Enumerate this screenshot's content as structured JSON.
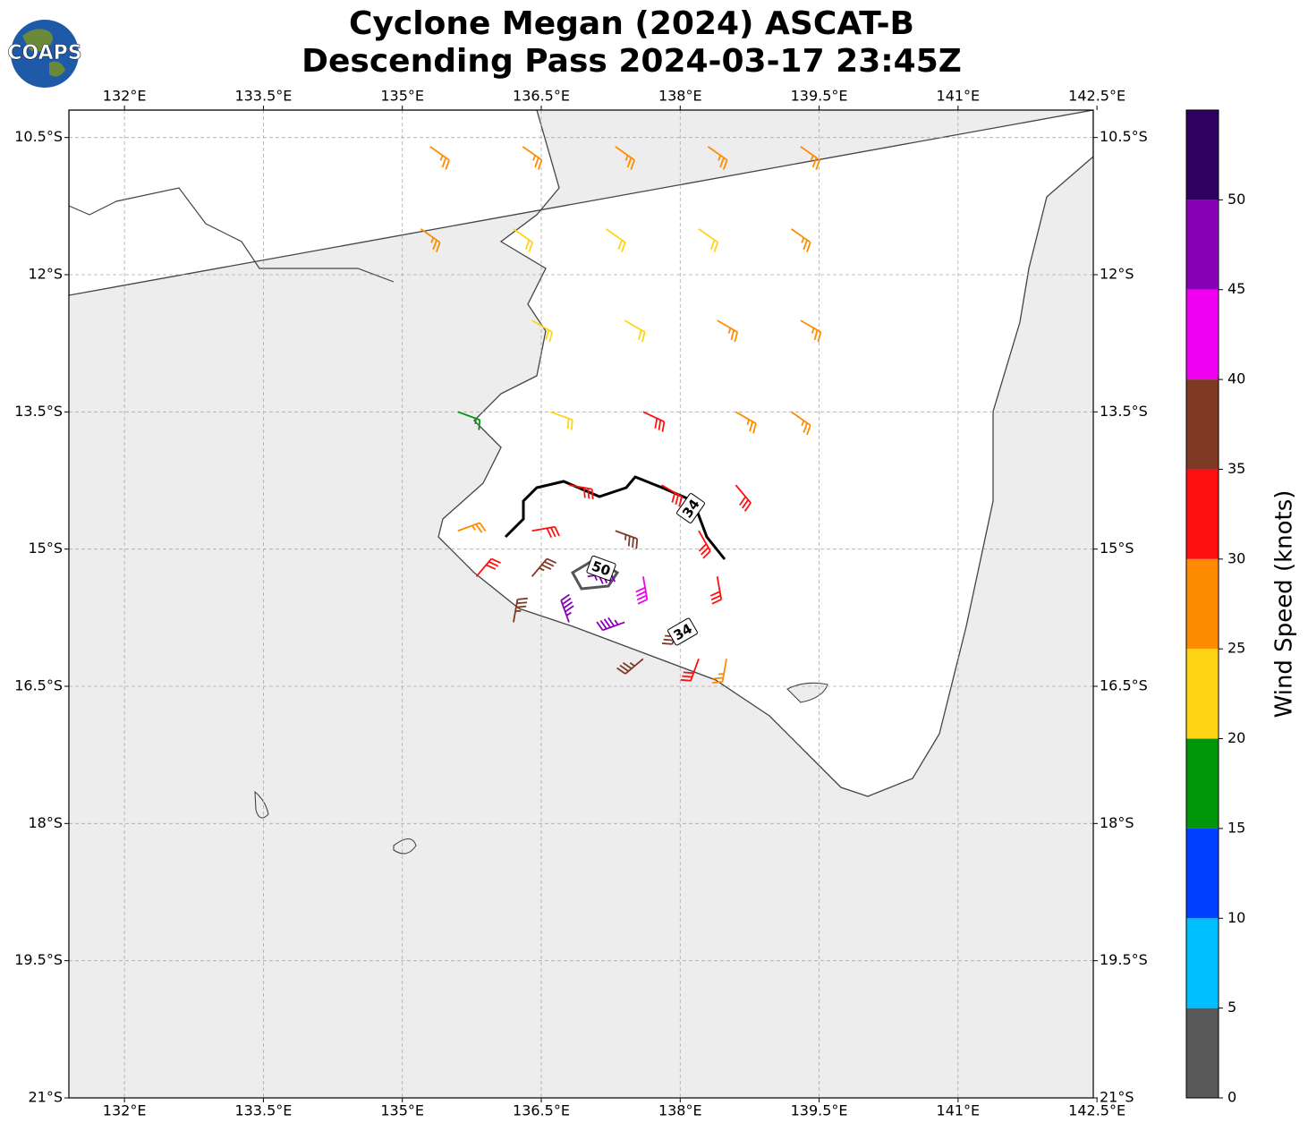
{
  "title": [
    "Cyclone Megan (2024) ASCAT-B",
    "Descending Pass 2024-03-17 23:45Z"
  ],
  "logo": "COAPS",
  "map": {
    "xlim": [
      131.4,
      142.46
    ],
    "ylim": [
      -21,
      -10.2
    ],
    "xticks": [
      {
        "value": 132,
        "label": "132°E"
      },
      {
        "value": 133.5,
        "label": "133.5°E"
      },
      {
        "value": 135,
        "label": "135°E"
      },
      {
        "value": 136.5,
        "label": "136.5°E"
      },
      {
        "value": 138,
        "label": "138°E"
      },
      {
        "value": 139.5,
        "label": "139.5°E"
      },
      {
        "value": 141,
        "label": "141°E"
      },
      {
        "value": 142.5,
        "label": "142.5°E"
      }
    ],
    "yticks": [
      {
        "value": -10.5,
        "label": "10.5°S"
      },
      {
        "value": -12,
        "label": "12°S"
      },
      {
        "value": -13.5,
        "label": "13.5°S"
      },
      {
        "value": -15,
        "label": "15°S"
      },
      {
        "value": -16.5,
        "label": "16.5°S"
      },
      {
        "value": -18,
        "label": "18°S"
      },
      {
        "value": -19.5,
        "label": "19.5°S"
      },
      {
        "value": -21,
        "label": "21°S"
      }
    ],
    "grid": true,
    "barbs": [
      {
        "lon": 135.3,
        "lat": -10.6,
        "speed": 27,
        "dir": 125
      },
      {
        "lon": 136.3,
        "lat": -10.6,
        "speed": 26,
        "dir": 125
      },
      {
        "lon": 137.3,
        "lat": -10.6,
        "speed": 28,
        "dir": 125
      },
      {
        "lon": 138.3,
        "lat": -10.6,
        "speed": 27,
        "dir": 125
      },
      {
        "lon": 139.3,
        "lat": -10.6,
        "speed": 29,
        "dir": 125
      },
      {
        "lon": 135.2,
        "lat": -11.5,
        "speed": 27,
        "dir": 125
      },
      {
        "lon": 136.2,
        "lat": -11.5,
        "speed": 23,
        "dir": 125
      },
      {
        "lon": 137.2,
        "lat": -11.5,
        "speed": 22,
        "dir": 125
      },
      {
        "lon": 138.2,
        "lat": -11.5,
        "speed": 24,
        "dir": 125
      },
      {
        "lon": 139.2,
        "lat": -11.5,
        "speed": 27,
        "dir": 125
      },
      {
        "lon": 136.4,
        "lat": -12.5,
        "speed": 22,
        "dir": 120
      },
      {
        "lon": 137.4,
        "lat": -12.5,
        "speed": 22,
        "dir": 120
      },
      {
        "lon": 138.4,
        "lat": -12.5,
        "speed": 26,
        "dir": 120
      },
      {
        "lon": 139.3,
        "lat": -12.5,
        "speed": 27,
        "dir": 120
      },
      {
        "lon": 135.6,
        "lat": -13.5,
        "speed": 19,
        "dir": 110
      },
      {
        "lon": 136.6,
        "lat": -13.5,
        "speed": 24,
        "dir": 110
      },
      {
        "lon": 137.6,
        "lat": -13.5,
        "speed": 33,
        "dir": 115
      },
      {
        "lon": 138.6,
        "lat": -13.5,
        "speed": 28,
        "dir": 120
      },
      {
        "lon": 139.2,
        "lat": -13.5,
        "speed": 27,
        "dir": 125
      },
      {
        "lon": 136.8,
        "lat": -14.3,
        "speed": 32,
        "dir": 100
      },
      {
        "lon": 137.8,
        "lat": -14.3,
        "speed": 33,
        "dir": 120
      },
      {
        "lon": 138.6,
        "lat": -14.3,
        "speed": 30,
        "dir": 140
      },
      {
        "lon": 135.6,
        "lat": -14.8,
        "speed": 27,
        "dir": 70
      },
      {
        "lon": 136.4,
        "lat": -14.8,
        "speed": 34,
        "dir": 80
      },
      {
        "lon": 137.3,
        "lat": -14.8,
        "speed": 37,
        "dir": 110
      },
      {
        "lon": 138.2,
        "lat": -14.8,
        "speed": 32,
        "dir": 150
      },
      {
        "lon": 135.8,
        "lat": -15.3,
        "speed": 32,
        "dir": 40
      },
      {
        "lon": 136.4,
        "lat": -15.3,
        "speed": 38,
        "dir": 40
      },
      {
        "lon": 137.0,
        "lat": -15.3,
        "speed": 45,
        "dir": 80
      },
      {
        "lon": 137.6,
        "lat": -15.3,
        "speed": 42,
        "dir": 170
      },
      {
        "lon": 138.4,
        "lat": -15.3,
        "speed": 33,
        "dir": 170
      },
      {
        "lon": 136.2,
        "lat": -15.8,
        "speed": 38,
        "dir": 10
      },
      {
        "lon": 136.8,
        "lat": -15.8,
        "speed": 46,
        "dir": 340
      },
      {
        "lon": 137.4,
        "lat": -15.8,
        "speed": 45,
        "dir": 250
      },
      {
        "lon": 138.0,
        "lat": -15.8,
        "speed": 36,
        "dir": 200
      },
      {
        "lon": 137.6,
        "lat": -16.2,
        "speed": 37,
        "dir": 230
      },
      {
        "lon": 138.2,
        "lat": -16.2,
        "speed": 30,
        "dir": 200
      },
      {
        "lon": 138.5,
        "lat": -16.2,
        "speed": 27,
        "dir": 190
      }
    ],
    "contour_labels": [
      34,
      50,
      34
    ]
  },
  "colorbar": {
    "label": "Wind Speed (knots)",
    "lim": [
      0,
      55
    ],
    "ticks": [
      0,
      5,
      10,
      15,
      20,
      25,
      30,
      35,
      40,
      45,
      50
    ],
    "colors": [
      "#595959",
      "#00bfff",
      "#0040ff",
      "#00960a",
      "#ffd414",
      "#ff8c00",
      "#ff1010",
      "#7f3a26",
      "#f000f0",
      "#8800b8",
      "#2e0060"
    ]
  }
}
